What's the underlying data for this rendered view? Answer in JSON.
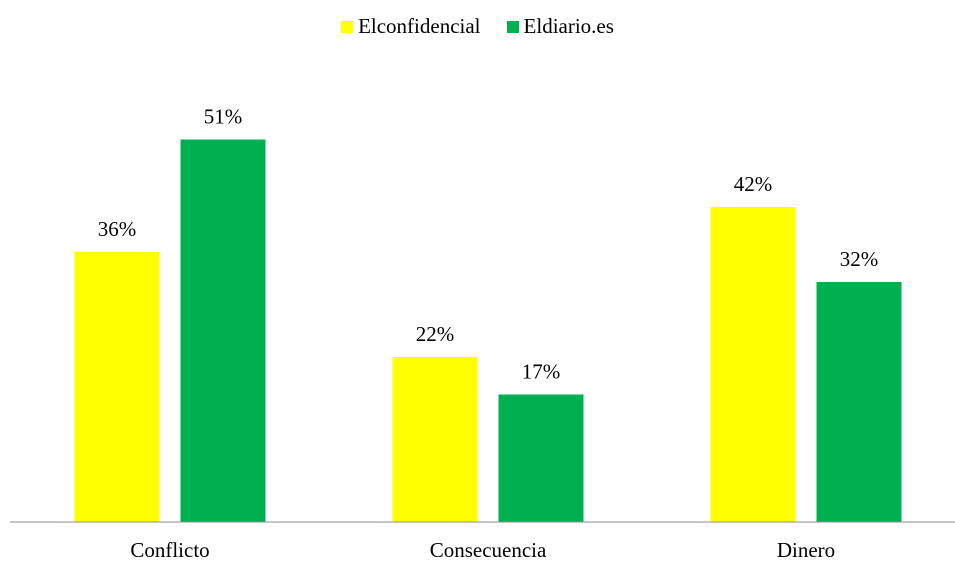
{
  "chart_data": {
    "type": "bar",
    "categories": [
      "Conflicto",
      "Consecuencia",
      "Dinero"
    ],
    "series": [
      {
        "name": "Elconfidencial",
        "color": "#ffff00",
        "values": [
          36,
          22,
          42
        ],
        "labels": [
          "36%",
          "22%",
          "42%"
        ]
      },
      {
        "name": "Eldiario.es",
        "color": "#00b050",
        "values": [
          51,
          17,
          32
        ],
        "labels": [
          "51%",
          "17%",
          "32%"
        ]
      }
    ],
    "ylim": [
      0,
      60
    ],
    "grid": false,
    "legend_position": "top"
  }
}
